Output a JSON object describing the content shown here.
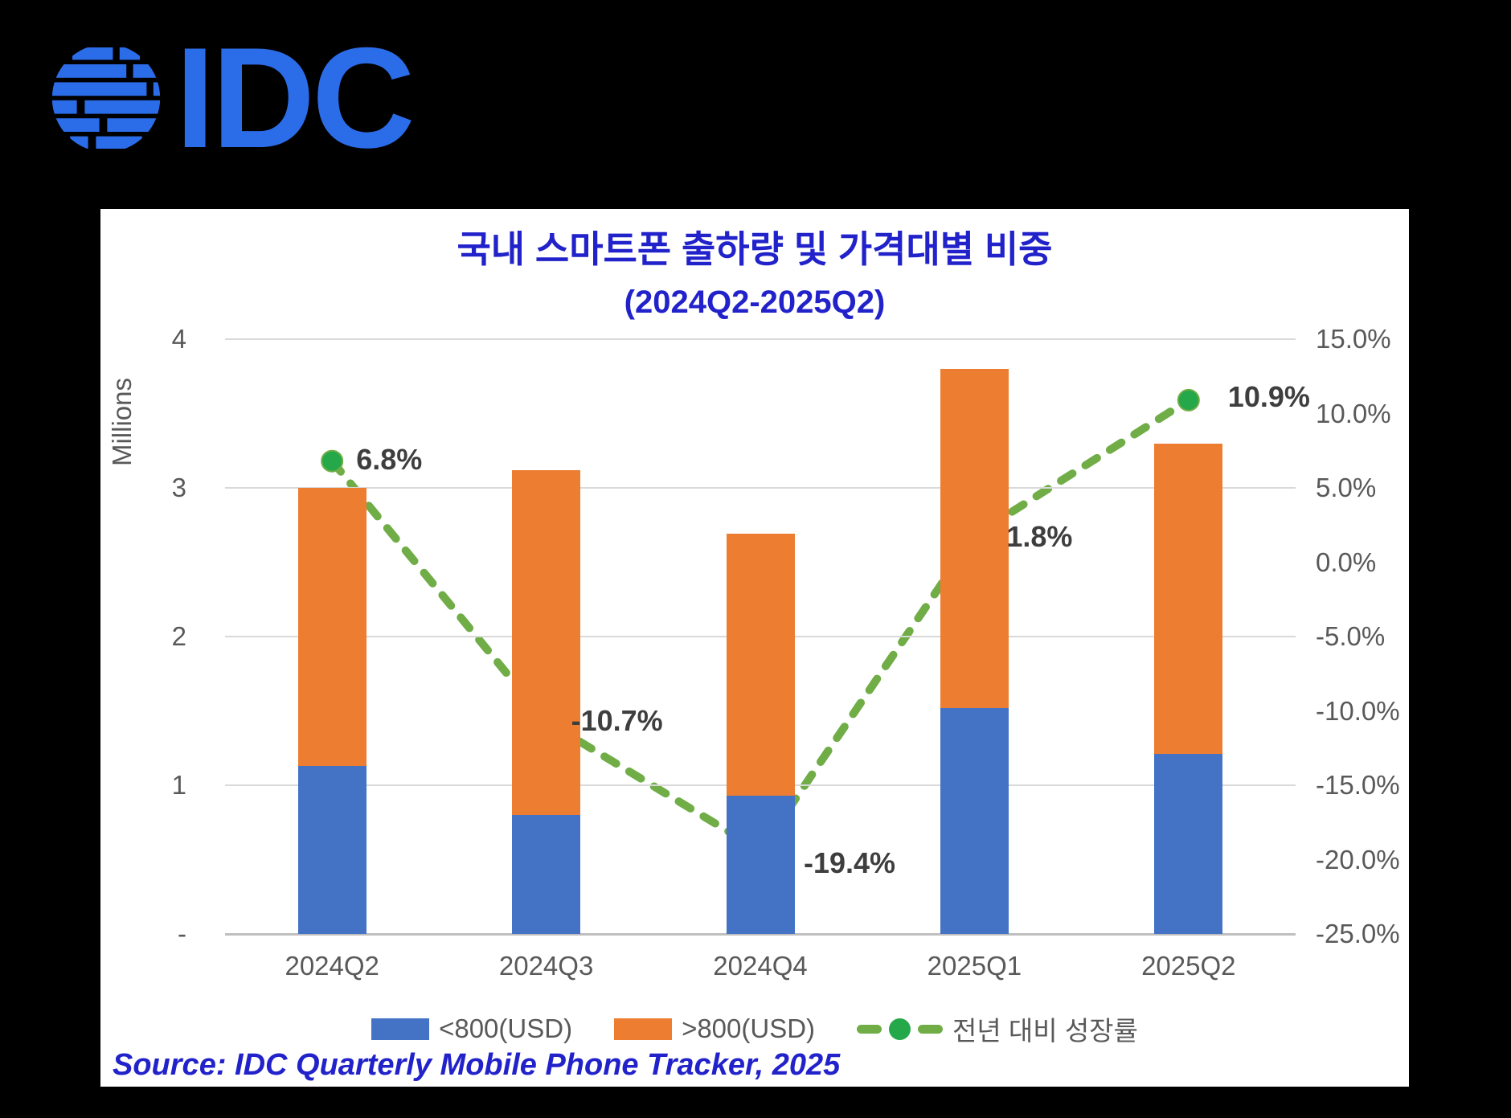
{
  "logo": {
    "text": "IDC",
    "color": "#2B6CE9"
  },
  "chart_data": {
    "type": "combo: stacked-bar + line (secondary axis)",
    "title": "국내 스마트폰 출하량 및 가격대별 비중",
    "subtitle": "(2024Q2-2025Q2)",
    "source": "Source: IDC Quarterly Mobile Phone Tracker, 2025",
    "categories": [
      "2024Q2",
      "2024Q3",
      "2024Q4",
      "2025Q1",
      "2025Q2"
    ],
    "series": [
      {
        "name": "<800(USD)",
        "type": "bar",
        "stacked": true,
        "color": "#4472C4",
        "values": [
          1.13,
          0.8,
          0.93,
          1.52,
          1.21
        ]
      },
      {
        "name": ">800(USD)",
        "type": "bar",
        "stacked": true,
        "color": "#ED7D31",
        "values": [
          1.87,
          2.32,
          1.76,
          2.28,
          2.09
        ]
      },
      {
        "name": "전년 대비 성장률",
        "type": "line",
        "axis": "right",
        "color": "#70AD47",
        "marker_color": "#24A84A",
        "values": [
          6.8,
          -10.7,
          -19.4,
          1.8,
          10.9
        ],
        "labels": [
          "6.8%",
          "-10.7%",
          "-19.4%",
          "1.8%",
          "10.9%"
        ]
      }
    ],
    "stack_totals_millions": [
      3.0,
      3.12,
      2.69,
      3.8,
      3.3
    ],
    "left_axis": {
      "title": "Millions",
      "min": 0,
      "max": 4,
      "ticks": [
        "4",
        "3",
        "2",
        "1",
        "-"
      ]
    },
    "right_axis": {
      "min": -25,
      "max": 15,
      "ticks": [
        "15.0%",
        "10.0%",
        "5.0%",
        "0.0%",
        "-5.0%",
        "-10.0%",
        "-15.0%",
        "-20.0%",
        "-25.0%"
      ]
    },
    "grid": "horizontal",
    "legend_position": "bottom",
    "title_color": "#2222CB",
    "axis_text_color": "#595959",
    "data_label_color": "#3E3E3E",
    "gridline_color": "#D9D9D9"
  }
}
